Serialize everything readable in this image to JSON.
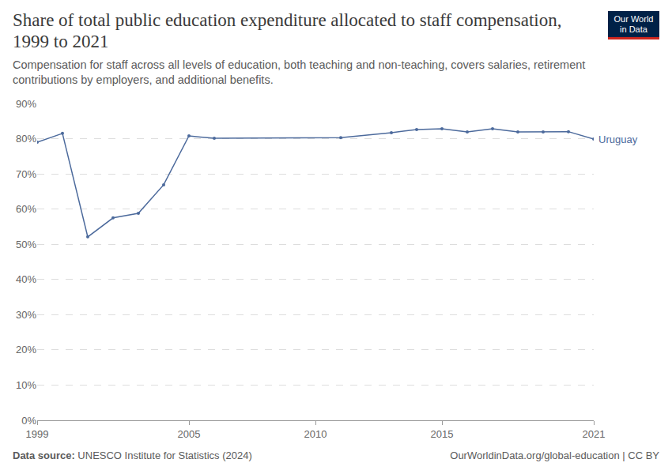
{
  "chart_data": {
    "type": "line",
    "title": "Share of total public education expenditure allocated to staff compensation, 1999 to 2021",
    "subtitle": "Compensation for staff across all levels of education, both teaching and non-teaching, covers salaries, retirement contributions by employers, and additional benefits.",
    "logo": [
      "Our World",
      "in Data"
    ],
    "source_label": "Data source:",
    "source": "UNESCO Institute for Statistics (2024)",
    "footer_right": "OurWorldinData.org/global-education | CC BY",
    "x": [
      1999,
      2000,
      2001,
      2002,
      2003,
      2004,
      2005,
      2006,
      2011,
      2013,
      2014,
      2015,
      2016,
      2017,
      2018,
      2019,
      2020,
      2021
    ],
    "series": [
      {
        "name": "Uruguay",
        "color": "#4c6a9c",
        "values": [
          79.0,
          81.5,
          52.1,
          57.5,
          58.8,
          66.9,
          80.8,
          80.1,
          80.3,
          81.7,
          82.6,
          82.8,
          81.9,
          82.8,
          81.9,
          81.9,
          82.0,
          79.9
        ]
      }
    ],
    "xlim": [
      1999,
      2021
    ],
    "ylim": [
      0,
      90
    ],
    "xticks": [
      1999,
      2005,
      2010,
      2015,
      2021
    ],
    "yticks": [
      {
        "value": 0,
        "label": "0%"
      },
      {
        "value": 10,
        "label": "10%"
      },
      {
        "value": 20,
        "label": "20%"
      },
      {
        "value": 30,
        "label": "30%"
      },
      {
        "value": 40,
        "label": "40%"
      },
      {
        "value": 50,
        "label": "50%"
      },
      {
        "value": 60,
        "label": "60%"
      },
      {
        "value": 70,
        "label": "70%"
      },
      {
        "value": 80,
        "label": "80%"
      },
      {
        "value": 90,
        "label": "90%"
      }
    ],
    "grid": true,
    "marker": "circle"
  }
}
